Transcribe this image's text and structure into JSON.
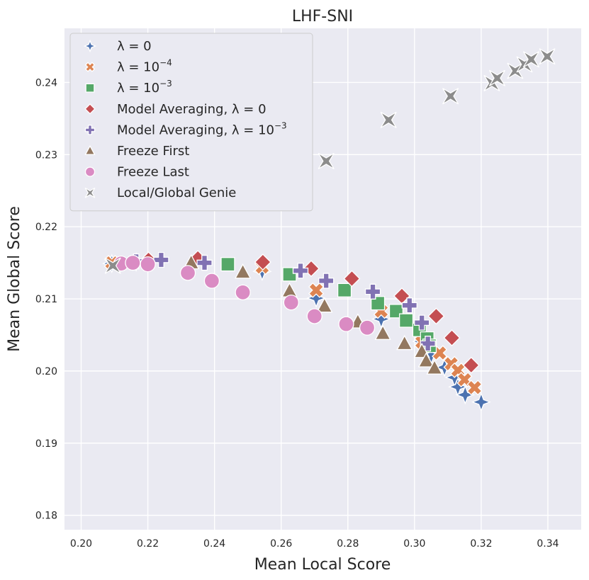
{
  "chart_data": {
    "type": "scatter",
    "title": "LHF-SNI",
    "xlabel": "Mean Local Score",
    "ylabel": "Mean Global Score",
    "xlim": [
      0.195,
      0.35
    ],
    "ylim": [
      0.178,
      0.2475
    ],
    "xticks": [
      0.2,
      0.22,
      0.24,
      0.26,
      0.28,
      0.3,
      0.32,
      0.34
    ],
    "xtick_labels": [
      "0.20",
      "0.22",
      "0.24",
      "0.26",
      "0.28",
      "0.30",
      "0.32",
      "0.34"
    ],
    "yticks": [
      0.18,
      0.19,
      0.2,
      0.21,
      0.22,
      0.23,
      0.24
    ],
    "ytick_labels": [
      "0.18",
      "0.19",
      "0.20",
      "0.21",
      "0.22",
      "0.23",
      "0.24"
    ],
    "grid": true,
    "legend_position": "top-left",
    "series": [
      {
        "name": "λ = 0",
        "legend": {
          "base": "λ = 0",
          "sup": ""
        },
        "marker": "diamond4",
        "color": "#4c72b0",
        "points": [
          [
            0.2092,
            0.2149
          ],
          [
            0.2165,
            0.2151
          ],
          [
            0.2543,
            0.2138
          ],
          [
            0.2705,
            0.2101
          ],
          [
            0.29,
            0.2072
          ],
          [
            0.3022,
            0.2041
          ],
          [
            0.305,
            0.2022
          ],
          [
            0.309,
            0.2005
          ],
          [
            0.312,
            0.1991
          ],
          [
            0.313,
            0.1978
          ],
          [
            0.3152,
            0.1967
          ],
          [
            0.32,
            0.1957
          ]
        ]
      },
      {
        "name": "λ = 10^-4",
        "legend": {
          "base": "λ = 10",
          "sup": "−4"
        },
        "marker": "x",
        "color": "#dd8452",
        "points": [
          [
            0.2092,
            0.215
          ],
          [
            0.2543,
            0.2144
          ],
          [
            0.2705,
            0.2112
          ],
          [
            0.29,
            0.2083
          ],
          [
            0.3022,
            0.204
          ],
          [
            0.3075,
            0.2025
          ],
          [
            0.311,
            0.201
          ],
          [
            0.313,
            0.2001
          ],
          [
            0.315,
            0.1988
          ],
          [
            0.318,
            0.1977
          ]
        ]
      },
      {
        "name": "λ = 10^-3",
        "legend": {
          "base": "λ = 10",
          "sup": "−3"
        },
        "marker": "square",
        "color": "#55a868",
        "points": [
          [
            0.244,
            0.2148
          ],
          [
            0.2625,
            0.2134
          ],
          [
            0.279,
            0.2112
          ],
          [
            0.289,
            0.2094
          ],
          [
            0.2945,
            0.2083
          ],
          [
            0.2975,
            0.207
          ],
          [
            0.3015,
            0.2057
          ],
          [
            0.3038,
            0.2045
          ],
          [
            0.3045,
            0.2035
          ]
        ]
      },
      {
        "name": "Model Averaging, λ = 0",
        "legend": {
          "base": "Model Averaging, λ = 0",
          "sup": ""
        },
        "marker": "diamond",
        "color": "#c44e52",
        "points": [
          [
            0.2202,
            0.2154
          ],
          [
            0.235,
            0.2156
          ],
          [
            0.2545,
            0.2151
          ],
          [
            0.269,
            0.2142
          ],
          [
            0.2812,
            0.2128
          ],
          [
            0.2962,
            0.2104
          ],
          [
            0.3065,
            0.2076
          ],
          [
            0.3112,
            0.2046
          ],
          [
            0.317,
            0.2008
          ]
        ]
      },
      {
        "name": "Model Averaging, λ = 10^-3",
        "legend": {
          "base": "Model Averaging, λ = 10",
          "sup": "−3"
        },
        "marker": "plus",
        "color": "#8172b3",
        "points": [
          [
            0.2165,
            0.2152
          ],
          [
            0.224,
            0.2154
          ],
          [
            0.237,
            0.215
          ],
          [
            0.2658,
            0.2139
          ],
          [
            0.2735,
            0.2125
          ],
          [
            0.2875,
            0.211
          ],
          [
            0.2985,
            0.2091
          ],
          [
            0.3022,
            0.2067
          ],
          [
            0.304,
            0.2038
          ]
        ]
      },
      {
        "name": "Freeze First",
        "legend": {
          "base": "Freeze First",
          "sup": ""
        },
        "marker": "triangle",
        "color": "#937860",
        "points": [
          [
            0.233,
            0.215
          ],
          [
            0.2485,
            0.2137
          ],
          [
            0.2625,
            0.2111
          ],
          [
            0.273,
            0.209
          ],
          [
            0.283,
            0.2068
          ],
          [
            0.2905,
            0.2052
          ],
          [
            0.297,
            0.2038
          ],
          [
            0.3022,
            0.2027
          ],
          [
            0.3035,
            0.2014
          ],
          [
            0.306,
            0.2004
          ]
        ]
      },
      {
        "name": "Freeze Last",
        "legend": {
          "base": "Freeze Last",
          "sup": ""
        },
        "marker": "circle",
        "color": "#da8bc3",
        "points": [
          [
            0.212,
            0.2149
          ],
          [
            0.2155,
            0.215
          ],
          [
            0.22,
            0.2148
          ],
          [
            0.232,
            0.2136
          ],
          [
            0.2392,
            0.2125
          ],
          [
            0.2485,
            0.2109
          ],
          [
            0.263,
            0.2095
          ],
          [
            0.27,
            0.2076
          ],
          [
            0.2795,
            0.2065
          ],
          [
            0.2858,
            0.206
          ]
        ]
      },
      {
        "name": "Local/Global Genie",
        "legend": {
          "base": "Local/Global Genie",
          "sup": ""
        },
        "marker": "star4",
        "color": "#8c8c8c",
        "points": [
          [
            0.2095,
            0.2146
          ],
          [
            0.2735,
            0.2291
          ],
          [
            0.2922,
            0.2348
          ],
          [
            0.3108,
            0.2381
          ],
          [
            0.3232,
            0.2399
          ],
          [
            0.3248,
            0.2406
          ],
          [
            0.3302,
            0.2416
          ],
          [
            0.333,
            0.2425
          ],
          [
            0.335,
            0.2432
          ],
          [
            0.3398,
            0.2436
          ]
        ]
      }
    ]
  }
}
